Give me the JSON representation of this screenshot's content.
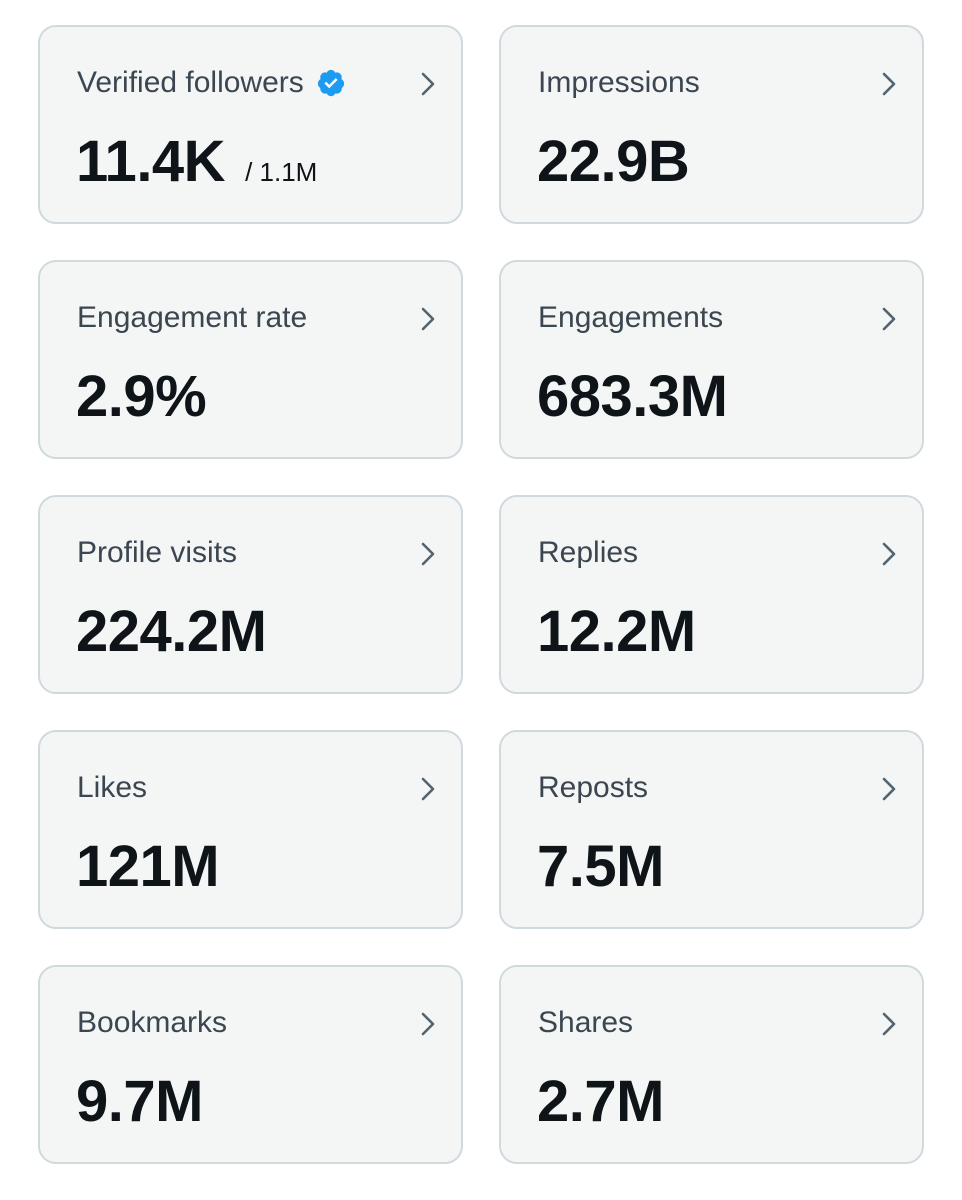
{
  "accent_color": "#1d9bf0",
  "metrics": [
    {
      "label": "Verified followers",
      "value": "11.4K",
      "sub": "/ 1.1M",
      "verified": true
    },
    {
      "label": "Impressions",
      "value": "22.9B"
    },
    {
      "label": "Engagement rate",
      "value": "2.9%"
    },
    {
      "label": "Engagements",
      "value": "683.3M"
    },
    {
      "label": "Profile visits",
      "value": "224.2M"
    },
    {
      "label": "Replies",
      "value": "12.2M"
    },
    {
      "label": "Likes",
      "value": "121M"
    },
    {
      "label": "Reposts",
      "value": "7.5M"
    },
    {
      "label": "Bookmarks",
      "value": "9.7M"
    },
    {
      "label": "Shares",
      "value": "2.7M"
    }
  ],
  "icons": {
    "verified": "verified-badge-icon",
    "chevron": "chevron-right-icon"
  }
}
